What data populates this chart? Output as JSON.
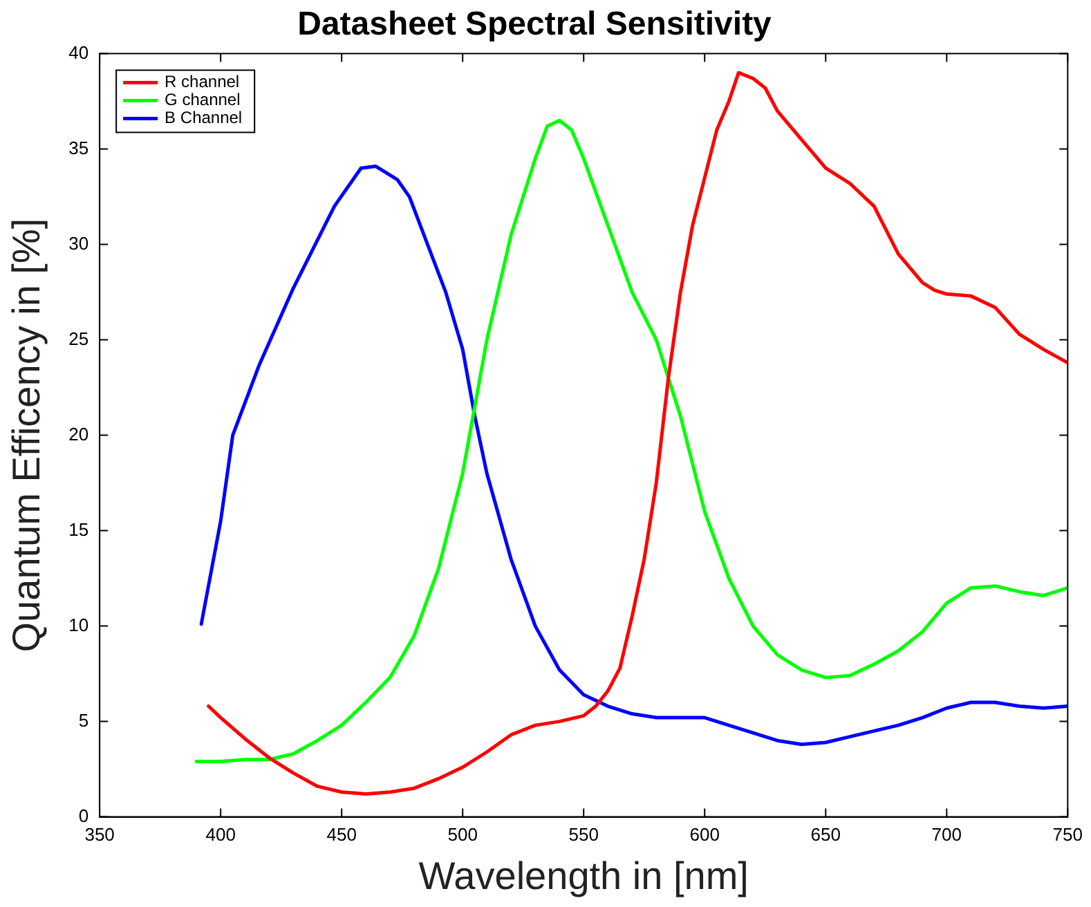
{
  "chart_data": {
    "type": "line",
    "title": "Datasheet Spectral Sensitivity",
    "xlabel": "Wavelength in [nm]",
    "ylabel": "Quantum Efficency in [%]",
    "xlim": [
      350,
      750
    ],
    "xticks": [
      350,
      400,
      450,
      500,
      550,
      600,
      650,
      700,
      750
    ],
    "ylim": [
      0,
      40
    ],
    "yticks": [
      0,
      5,
      10,
      15,
      20,
      25,
      30,
      35,
      40
    ],
    "grid": false,
    "legend": "top left",
    "marker": "none",
    "line_style": "solid",
    "series": [
      {
        "name": "R channel",
        "color": "#ff0000",
        "x": [
          395,
          400,
          410,
          420,
          430,
          440,
          450,
          460,
          470,
          480,
          490,
          500,
          510,
          520,
          530,
          540,
          550,
          555,
          560,
          565,
          570,
          575,
          580,
          585,
          590,
          595,
          600,
          605,
          610,
          614,
          620,
          625,
          630,
          640,
          650,
          660,
          670,
          680,
          690,
          695,
          700,
          710,
          720,
          730,
          740,
          750
        ],
        "values": [
          5.8,
          5.2,
          4.1,
          3.1,
          2.3,
          1.6,
          1.3,
          1.2,
          1.3,
          1.5,
          2.0,
          2.6,
          3.4,
          4.3,
          4.8,
          5.0,
          5.3,
          5.8,
          6.6,
          7.8,
          10.5,
          13.5,
          17.5,
          23,
          27.5,
          31,
          33.5,
          36,
          37.5,
          39.0,
          38.7,
          38.2,
          37,
          35.5,
          34,
          33.2,
          32,
          29.5,
          28,
          27.6,
          27.4,
          27.3,
          26.7,
          25.3,
          24.5,
          23.8
        ]
      },
      {
        "name": "G channel",
        "color": "#00ff00",
        "x": [
          390,
          400,
          410,
          420,
          430,
          440,
          450,
          460,
          470,
          480,
          490,
          500,
          505,
          510,
          520,
          530,
          535,
          540,
          545,
          550,
          560,
          570,
          580,
          585,
          590,
          600,
          610,
          620,
          630,
          640,
          650,
          660,
          670,
          680,
          690,
          700,
          710,
          720,
          730,
          740,
          750
        ],
        "values": [
          2.9,
          2.9,
          3.0,
          3.0,
          3.3,
          4.0,
          4.8,
          6.0,
          7.3,
          9.5,
          13,
          18,
          21.5,
          25,
          30.5,
          34.5,
          36.2,
          36.5,
          36.0,
          34.5,
          31,
          27.5,
          25,
          23,
          21,
          16,
          12.5,
          10,
          8.5,
          7.7,
          7.3,
          7.4,
          8.0,
          8.7,
          9.7,
          11.2,
          12.0,
          12.1,
          11.8,
          11.6,
          12.0
        ]
      },
      {
        "name": "B Channel",
        "color": "#0000ff",
        "x": [
          392,
          400,
          405,
          416,
          430,
          447,
          458,
          464,
          473,
          478,
          484,
          493,
          500,
          505,
          510,
          520,
          530,
          540,
          550,
          560,
          570,
          580,
          600,
          610,
          620,
          630,
          640,
          650,
          660,
          670,
          680,
          690,
          700,
          710,
          720,
          730,
          740,
          750
        ],
        "values": [
          10.1,
          15.5,
          20,
          23.7,
          27.7,
          32,
          34,
          34.1,
          33.4,
          32.5,
          30.5,
          27.5,
          24.5,
          21,
          18,
          13.5,
          10,
          7.7,
          6.4,
          5.8,
          5.4,
          5.2,
          5.2,
          4.8,
          4.4,
          4.0,
          3.8,
          3.9,
          4.2,
          4.5,
          4.8,
          5.2,
          5.7,
          6.0,
          6.0,
          5.8,
          5.7,
          5.8
        ]
      }
    ]
  }
}
